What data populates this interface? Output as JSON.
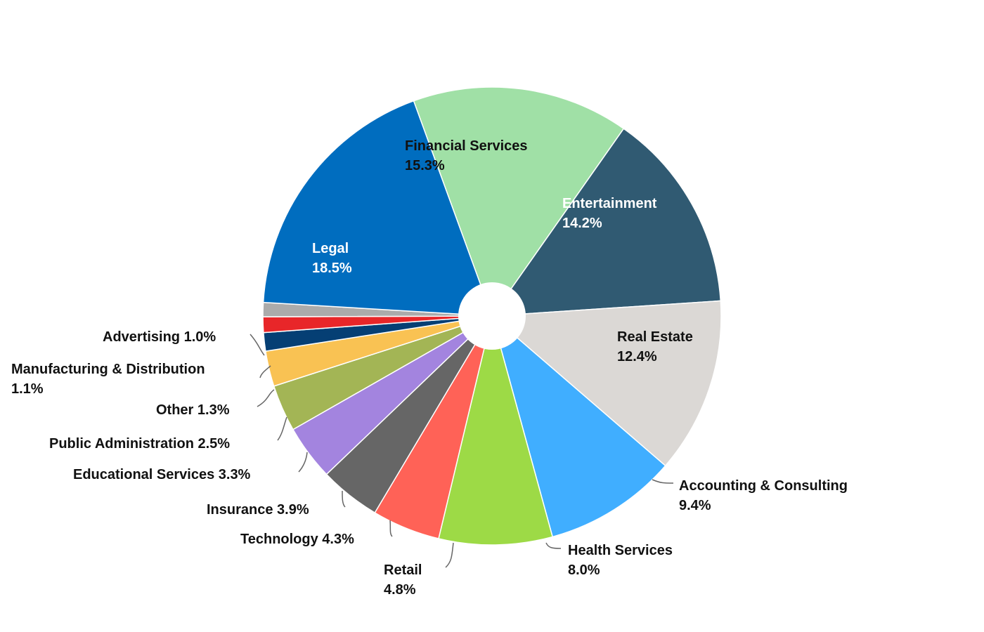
{
  "chart_data": {
    "type": "pie",
    "donut_hole": true,
    "start_angle_deg": 340,
    "direction": "clockwise",
    "slices": [
      {
        "label": "Financial Services",
        "value": 15.3,
        "pct_text": "15.3%",
        "color": "#A0E0A6",
        "label_color": "#111111",
        "label_placement": "inside",
        "two_line": true
      },
      {
        "label": "Entertainment",
        "value": 14.2,
        "pct_text": "14.2%",
        "color": "#305A72",
        "label_color": "#FFFFFF",
        "label_placement": "inside",
        "two_line": true
      },
      {
        "label": "Real Estate",
        "value": 12.4,
        "pct_text": "12.4%",
        "color": "#DBD8D5",
        "label_color": "#111111",
        "label_placement": "inside",
        "two_line": true
      },
      {
        "label": "Accounting & Consulting",
        "value": 9.4,
        "pct_text": "9.4%",
        "color": "#40AEFF",
        "label_color": "#111111",
        "label_placement": "outside",
        "two_line": true
      },
      {
        "label": "Health Services",
        "value": 8.0,
        "pct_text": "8.0%",
        "color": "#9DDA46",
        "label_color": "#111111",
        "label_placement": "outside",
        "two_line": true
      },
      {
        "label": "Retail",
        "value": 4.8,
        "pct_text": "4.8%",
        "color": "#FF6257",
        "label_color": "#111111",
        "label_placement": "outside",
        "two_line": true
      },
      {
        "label": "Technology",
        "value": 4.3,
        "pct_text": "4.3%",
        "color": "#666666",
        "label_color": "#111111",
        "label_placement": "outside",
        "two_line": false
      },
      {
        "label": "Insurance",
        "value": 3.9,
        "pct_text": "3.9%",
        "color": "#A384DF",
        "label_color": "#111111",
        "label_placement": "outside",
        "two_line": false
      },
      {
        "label": "Educational Services",
        "value": 3.3,
        "pct_text": "3.3%",
        "color": "#A3B555",
        "label_color": "#111111",
        "label_placement": "outside",
        "two_line": false
      },
      {
        "label": "Public Administration",
        "value": 2.5,
        "pct_text": "2.5%",
        "color": "#F9C253",
        "label_color": "#111111",
        "label_placement": "outside",
        "two_line": false
      },
      {
        "label": "Other",
        "value": 1.3,
        "pct_text": "1.3%",
        "color": "#053F74",
        "label_color": "#111111",
        "label_placement": "outside",
        "two_line": false
      },
      {
        "label": "Manufacturing & Distribution",
        "value": 1.1,
        "pct_text": "1.1%",
        "color": "#E82629",
        "label_color": "#111111",
        "label_placement": "outside",
        "two_line": true
      },
      {
        "label": "Advertising",
        "value": 1.0,
        "pct_text": "1.0%",
        "color": "#ABABAB",
        "label_color": "#111111",
        "label_placement": "outside",
        "two_line": false
      },
      {
        "label": "Legal",
        "value": 18.5,
        "pct_text": "18.5%",
        "color": "#006DBF",
        "label_color": "#FFFFFF",
        "label_placement": "inside",
        "two_line": true
      }
    ]
  }
}
